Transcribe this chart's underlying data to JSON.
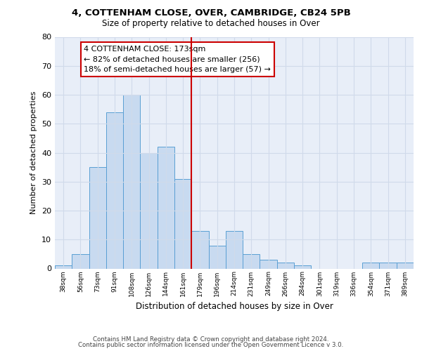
{
  "title": "4, COTTENHAM CLOSE, OVER, CAMBRIDGE, CB24 5PB",
  "subtitle": "Size of property relative to detached houses in Over",
  "xlabel": "Distribution of detached houses by size in Over",
  "ylabel": "Number of detached properties",
  "bar_labels": [
    "38sqm",
    "56sqm",
    "73sqm",
    "91sqm",
    "108sqm",
    "126sqm",
    "144sqm",
    "161sqm",
    "179sqm",
    "196sqm",
    "214sqm",
    "231sqm",
    "249sqm",
    "266sqm",
    "284sqm",
    "301sqm",
    "319sqm",
    "336sqm",
    "354sqm",
    "371sqm",
    "389sqm"
  ],
  "bar_heights": [
    1,
    5,
    35,
    54,
    60,
    40,
    42,
    31,
    13,
    8,
    13,
    5,
    3,
    2,
    1,
    0,
    0,
    0,
    2,
    2,
    2
  ],
  "bar_color": "#c8daf0",
  "bar_edge_color": "#5a9fd4",
  "vline_color": "#cc0000",
  "annotation_line1": "4 COTTENHAM CLOSE: 173sqm",
  "annotation_line2": "← 82% of detached houses are smaller (256)",
  "annotation_line3": "18% of semi-detached houses are larger (57) →",
  "annotation_box_edge_color": "#cc0000",
  "ylim": [
    0,
    80
  ],
  "yticks": [
    0,
    10,
    20,
    30,
    40,
    50,
    60,
    70,
    80
  ],
  "grid_color": "#d0daea",
  "background_color": "#e8eef8",
  "footer1": "Contains HM Land Registry data © Crown copyright and database right 2024.",
  "footer2": "Contains public sector information licensed under the Open Government Licence v 3.0."
}
